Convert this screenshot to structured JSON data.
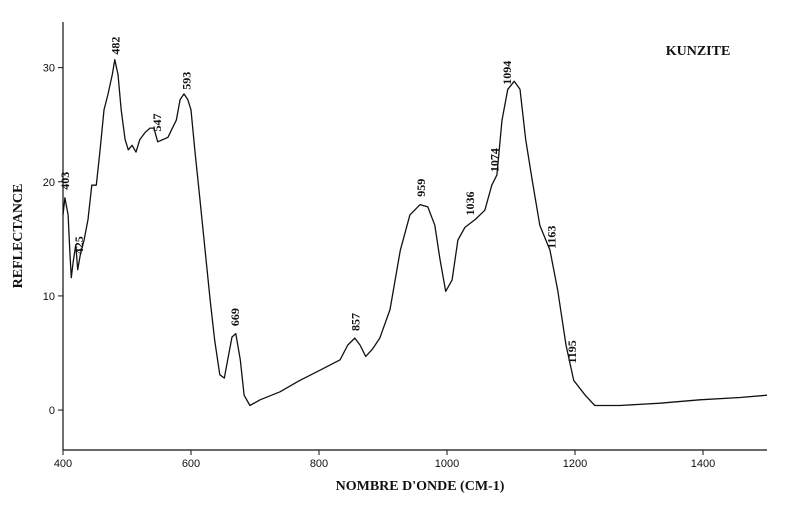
{
  "chart_data": {
    "type": "line",
    "title": "KUNZITE",
    "x_label": "NOMBRE D'ONDE (CM-1)",
    "y_label": "REFLECTANCE",
    "color": "#111111",
    "x": [
      400,
      403,
      408,
      411,
      413,
      416,
      420,
      423,
      427,
      433,
      439,
      445,
      452,
      458,
      464,
      470,
      477,
      481,
      486,
      491,
      497,
      502,
      508,
      514,
      520,
      528,
      536,
      542,
      548,
      556,
      564,
      570,
      577,
      583,
      589,
      595,
      600,
      606,
      614,
      622,
      630,
      637,
      645,
      652,
      658,
      664,
      670,
      677,
      683,
      692,
      708,
      739,
      770,
      802,
      833,
      845,
      856,
      864,
      873,
      883,
      895,
      911,
      927,
      942,
      958,
      970,
      981,
      989,
      998,
      1008,
      1017,
      1028,
      1044,
      1059,
      1070,
      1078,
      1086,
      1095,
      1105,
      1114,
      1123,
      1133,
      1145,
      1161,
      1173,
      1186,
      1198,
      1216,
      1231,
      1270,
      1333,
      1395,
      1458,
      1500
    ],
    "y": [
      17.1,
      18.6,
      17.1,
      13.6,
      11.6,
      13,
      14.5,
      12.3,
      13.6,
      14.9,
      16.7,
      19.7,
      19.7,
      22.8,
      26.3,
      27.6,
      29.4,
      30.7,
      29.4,
      26.3,
      23.7,
      22.8,
      23.2,
      22.6,
      23.7,
      24.3,
      24.7,
      24.7,
      23.5,
      23.7,
      23.9,
      24.6,
      25.4,
      27.2,
      27.7,
      27.2,
      26.3,
      22.8,
      18.4,
      14,
      9.6,
      6.1,
      3.1,
      2.8,
      4.6,
      6.4,
      6.7,
      4.4,
      1.3,
      0.4,
      0.9,
      1.6,
      2.6,
      3.5,
      4.4,
      5.7,
      6.3,
      5.7,
      4.7,
      5.3,
      6.3,
      8.8,
      14,
      17.1,
      18,
      17.8,
      16.2,
      13.2,
      10.4,
      11.4,
      14.9,
      16,
      16.7,
      17.5,
      19.7,
      20.6,
      25.4,
      28.1,
      28.8,
      28.1,
      23.7,
      20.2,
      16.2,
      14,
      10.5,
      5.7,
      2.6,
      1.3,
      0.4,
      0.4,
      0.6,
      0.9,
      1.1,
      1.3
    ],
    "xlim": [
      400,
      1500
    ],
    "ylim": [
      -3.5,
      34
    ],
    "xticks": [
      400,
      600,
      800,
      1000,
      1200,
      1400
    ],
    "yticks": [
      0,
      10,
      20,
      30
    ],
    "peaks": [
      403,
      425,
      482,
      547,
      593,
      669,
      857,
      959,
      1036,
      1074,
      1094,
      1163,
      1195
    ]
  }
}
